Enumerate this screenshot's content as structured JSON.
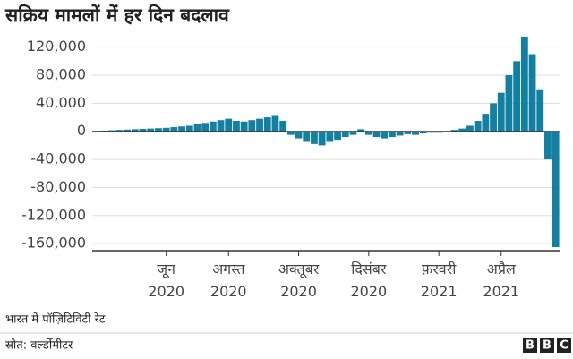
{
  "chart_data": {
    "type": "bar",
    "title": "सक्रिय मामलों में हर दिन बदलाव",
    "note": "भारत में पॉज़िटिविटी रेट",
    "source": "स्रोत: वर्ल्डोमीटर",
    "logo": [
      "B",
      "B",
      "C"
    ],
    "color": "#1380a1",
    "grid": true,
    "categories": [
      null,
      null,
      null,
      null,
      null,
      null,
      null,
      null,
      null,
      "जून 2020",
      null,
      null,
      null,
      null,
      null,
      null,
      null,
      "अगस्त 2020",
      null,
      null,
      null,
      null,
      null,
      null,
      null,
      null,
      "अक्तूबर 2020",
      null,
      null,
      null,
      null,
      null,
      null,
      null,
      null,
      "दिसंबर 2020",
      null,
      null,
      null,
      null,
      null,
      null,
      null,
      null,
      "फ़रवरी 2021",
      null,
      null,
      null,
      null,
      null,
      null,
      null,
      "अप्रैल 2021",
      null,
      null,
      null,
      null,
      null,
      null,
      null
    ],
    "values": [
      500,
      1000,
      1500,
      2000,
      2500,
      3000,
      3500,
      4000,
      4500,
      5000,
      6000,
      7000,
      8000,
      10000,
      12000,
      14000,
      16000,
      18000,
      15000,
      14000,
      16000,
      18000,
      20000,
      22000,
      15000,
      -5000,
      -10000,
      -15000,
      -18000,
      -20000,
      -15000,
      -12000,
      -8000,
      -5000,
      3000,
      -5000,
      -8000,
      -10000,
      -8000,
      -6000,
      -4000,
      -5000,
      -3000,
      -2000,
      -2000,
      -1000,
      2000,
      4000,
      8000,
      15000,
      25000,
      40000,
      55000,
      80000,
      100000,
      135000,
      110000,
      60000,
      -40000,
      -165000
    ],
    "ylim": [
      -170000,
      140000
    ],
    "yticks": [
      {
        "value": 120000,
        "label": "120,000"
      },
      {
        "value": 80000,
        "label": "80,000"
      },
      {
        "value": 40000,
        "label": "40,000"
      },
      0,
      {
        "value": -40000,
        "label": "-40,000"
      },
      {
        "value": -80000,
        "label": "-80,000"
      },
      {
        "value": -120000,
        "label": "-120,000"
      },
      {
        "value": -160000,
        "label": "-160,000"
      }
    ]
  }
}
